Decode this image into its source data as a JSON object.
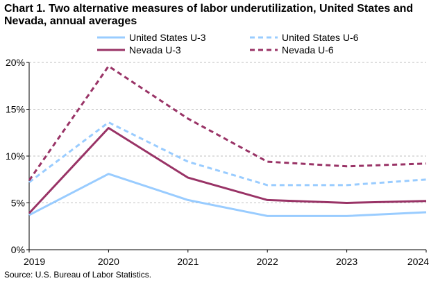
{
  "chart_data": {
    "type": "line",
    "title": "Chart 1. Two alternative measures of labor underutilization, United States and Nevada, annual averages",
    "xlabel": "",
    "ylabel": "",
    "x": [
      "2019",
      "2020",
      "2021",
      "2022",
      "2023",
      "2024"
    ],
    "ylim": [
      0,
      20
    ],
    "yticks": [
      0,
      5,
      10,
      15,
      20
    ],
    "ytick_labels": [
      "0%",
      "5%",
      "10%",
      "15%",
      "20%"
    ],
    "grid": "horizontal dashed",
    "legend_position": "top",
    "series": [
      {
        "name": "United States U-3",
        "values": [
          3.7,
          8.1,
          5.3,
          3.6,
          3.6,
          4.0
        ],
        "color": "#99CCFF",
        "dash": "solid"
      },
      {
        "name": "United States U-6",
        "values": [
          7.2,
          13.6,
          9.4,
          6.9,
          6.9,
          7.5
        ],
        "color": "#99CCFF",
        "dash": "dashed"
      },
      {
        "name": "Nevada U-3",
        "values": [
          3.9,
          13.0,
          7.7,
          5.3,
          5.0,
          5.2
        ],
        "color": "#993366",
        "dash": "solid"
      },
      {
        "name": "Nevada U-6",
        "values": [
          7.4,
          19.6,
          14.0,
          9.4,
          8.9,
          9.2
        ],
        "color": "#993366",
        "dash": "dashed"
      }
    ],
    "source": "Source: U.S. Bureau of Labor Statistics."
  }
}
